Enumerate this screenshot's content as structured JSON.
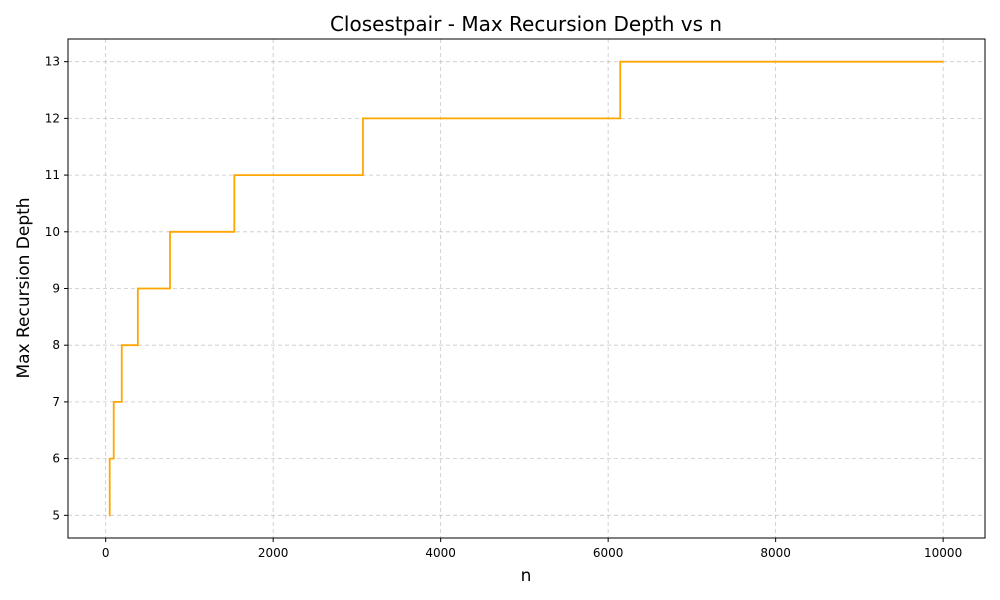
{
  "chart_data": {
    "type": "line",
    "title": "Closestpair - Max Recursion Depth vs n",
    "xlabel": "n",
    "ylabel": "Max Recursion Depth",
    "xlim": [
      -450,
      10500
    ],
    "ylim": [
      4.6,
      13.4
    ],
    "xticks": [
      0,
      2000,
      4000,
      6000,
      8000,
      10000
    ],
    "yticks": [
      5,
      6,
      7,
      8,
      9,
      10,
      11,
      12,
      13
    ],
    "grid": true,
    "legend": "none",
    "color": "#ffa500",
    "series": [
      {
        "x": [
          40,
          40,
          48,
          48,
          96,
          96,
          192,
          192,
          384,
          384,
          768,
          768,
          1536,
          1536,
          3072,
          3072,
          6144,
          6144,
          10000
        ],
        "y": [
          5,
          5,
          5,
          6,
          6,
          7,
          7,
          8,
          8,
          9,
          9,
          10,
          10,
          11,
          11,
          12,
          12,
          13,
          13
        ]
      }
    ]
  }
}
